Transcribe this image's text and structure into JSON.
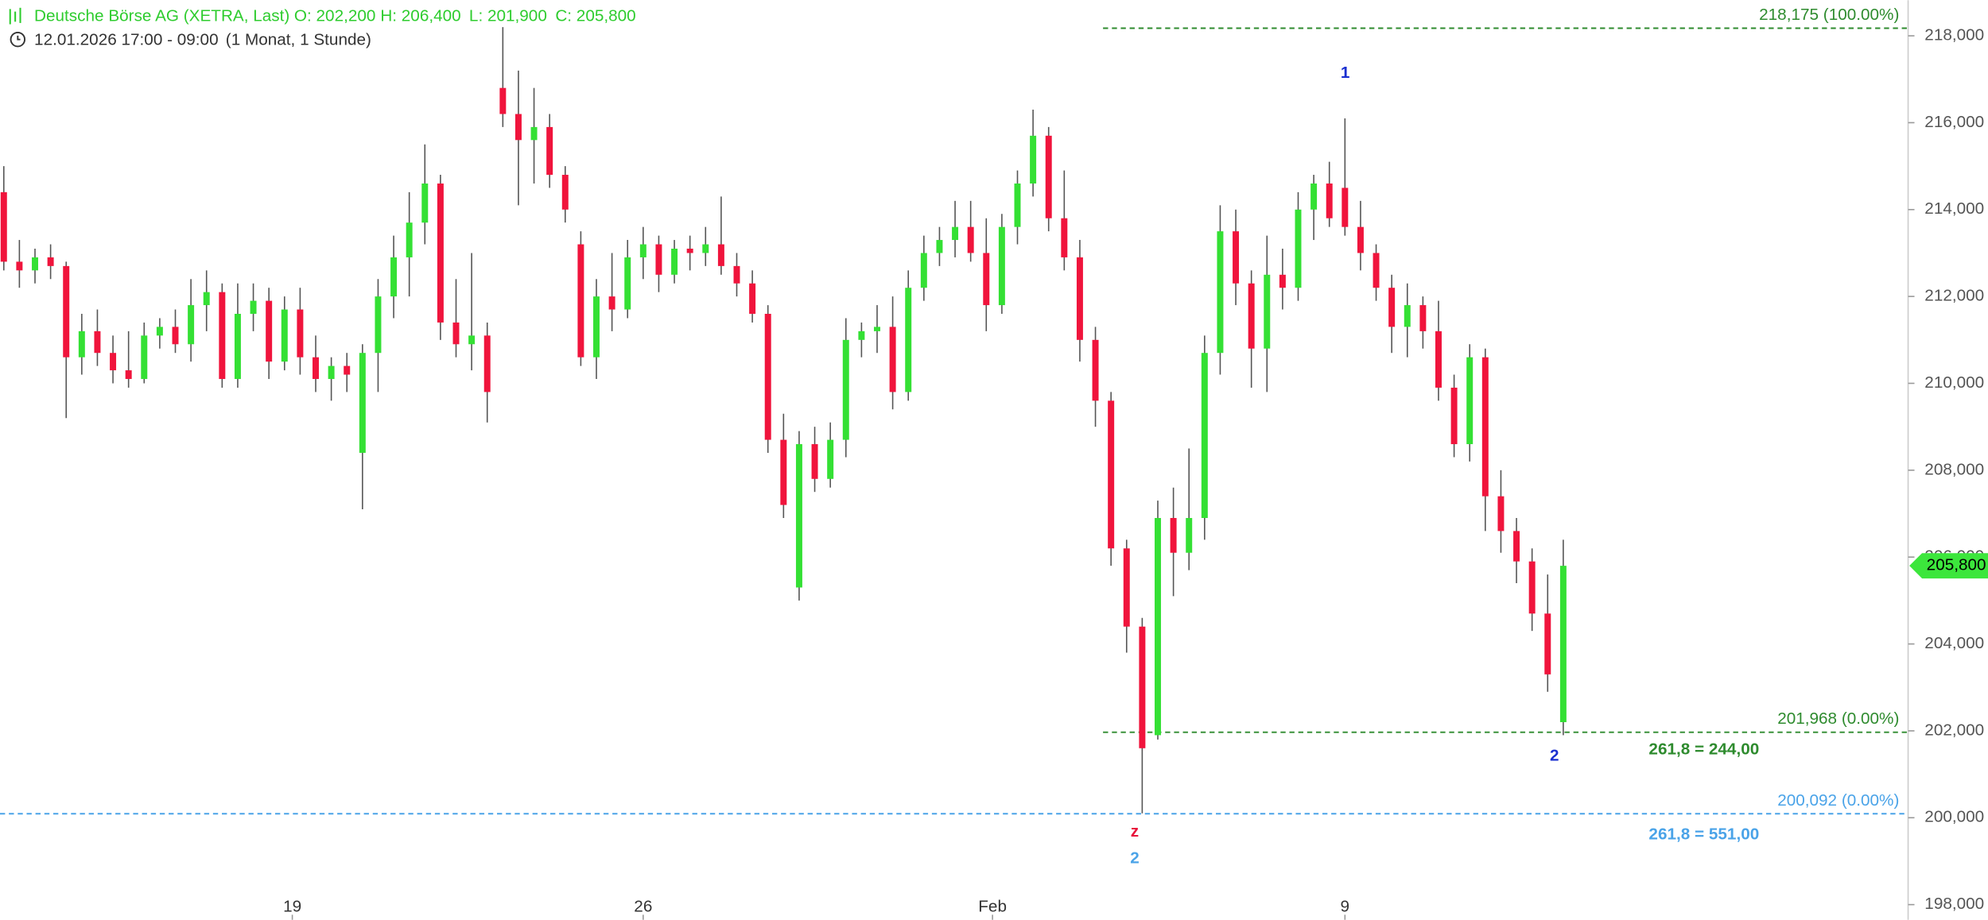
{
  "header": {
    "title": "Deutsche Börse AG (XETRA, Last)",
    "open": "O: 202,200",
    "high": "H: 206,400",
    "low": "L: 201,900",
    "close": "C: 205,800",
    "period": "12.01.2026 17:00 - 09:00",
    "interval": "(1 Monat, 1 Stunde)"
  },
  "chart_data": {
    "type": "candlestick",
    "up_color": "#34e034",
    "down_color": "#f0143c",
    "candles": {
      "open": [
        214.4,
        212.8,
        212.6,
        212.9,
        212.7,
        210.6,
        211.2,
        210.7,
        210.3,
        210.1,
        211.1,
        211.3,
        210.9,
        211.8,
        212.1,
        210.1,
        211.6,
        211.9,
        210.5,
        211.7,
        210.6,
        210.1,
        210.4,
        208.4,
        210.7,
        212.0,
        212.9,
        213.7,
        214.6,
        211.4,
        210.9,
        211.1,
        216.8,
        216.2,
        215.6,
        215.9,
        214.8,
        213.2,
        210.6,
        212.0,
        211.7,
        212.9,
        213.2,
        212.5,
        213.1,
        213.0,
        213.2,
        212.7,
        212.3,
        211.6,
        208.7,
        205.3,
        208.6,
        207.8,
        208.7,
        211.0,
        211.2,
        211.3,
        209.8,
        212.2,
        213.0,
        213.3,
        213.6,
        213.0,
        211.8,
        213.6,
        214.6,
        215.7,
        213.8,
        212.9,
        211.0,
        209.6,
        206.2,
        204.4,
        201.9,
        206.9,
        206.1,
        206.9,
        210.7,
        213.5,
        212.3,
        210.8,
        212.5,
        212.2,
        214.0,
        214.6,
        214.5,
        213.6,
        213.0,
        212.2,
        211.3,
        211.8,
        211.2,
        209.9,
        208.6,
        210.6,
        207.4,
        206.6,
        205.9,
        204.7,
        202.2
      ],
      "high": [
        215.0,
        213.3,
        213.1,
        213.2,
        212.8,
        211.6,
        211.7,
        211.1,
        211.2,
        211.4,
        211.5,
        211.7,
        212.4,
        212.6,
        212.3,
        212.3,
        212.3,
        212.2,
        212.0,
        212.2,
        211.1,
        210.6,
        210.7,
        210.9,
        212.4,
        213.4,
        214.4,
        215.5,
        214.8,
        212.4,
        213.0,
        211.4,
        218.2,
        217.2,
        216.8,
        216.2,
        215.0,
        213.5,
        212.4,
        213.0,
        213.3,
        213.6,
        213.4,
        213.3,
        213.4,
        213.6,
        214.3,
        213.0,
        212.6,
        211.8,
        209.3,
        208.9,
        209.0,
        209.1,
        211.5,
        211.4,
        211.8,
        212.0,
        212.6,
        213.4,
        213.6,
        214.2,
        214.2,
        213.8,
        213.9,
        214.9,
        216.3,
        215.9,
        214.9,
        213.3,
        211.3,
        209.8,
        206.4,
        204.6,
        207.3,
        207.6,
        208.5,
        211.1,
        214.1,
        214.0,
        212.6,
        213.4,
        213.1,
        214.4,
        214.8,
        215.1,
        216.1,
        214.2,
        213.2,
        212.5,
        212.3,
        212.0,
        211.9,
        210.2,
        210.9,
        210.8,
        208.0,
        206.9,
        206.2,
        205.6,
        206.4
      ],
      "low": [
        212.6,
        212.2,
        212.3,
        212.4,
        209.2,
        210.2,
        210.4,
        210.0,
        209.9,
        210.0,
        210.8,
        210.7,
        210.5,
        211.2,
        209.9,
        209.9,
        211.2,
        210.1,
        210.3,
        210.2,
        209.8,
        209.6,
        209.8,
        207.1,
        209.8,
        211.5,
        212.0,
        213.2,
        211.0,
        210.6,
        210.3,
        209.1,
        215.9,
        214.1,
        214.6,
        214.5,
        213.7,
        210.4,
        210.1,
        211.2,
        211.5,
        212.4,
        212.1,
        212.3,
        212.6,
        212.7,
        212.5,
        212.0,
        211.4,
        208.4,
        206.9,
        205.0,
        207.5,
        207.6,
        208.3,
        210.6,
        210.7,
        209.4,
        209.6,
        211.9,
        212.7,
        212.9,
        212.8,
        211.2,
        211.6,
        213.2,
        214.3,
        213.5,
        212.6,
        210.5,
        209.0,
        205.8,
        203.8,
        200.1,
        201.8,
        205.1,
        205.7,
        206.4,
        210.2,
        211.8,
        209.9,
        209.8,
        211.7,
        211.9,
        213.3,
        213.6,
        213.4,
        212.6,
        211.9,
        210.7,
        210.6,
        210.8,
        209.6,
        208.3,
        208.2,
        206.6,
        206.1,
        205.4,
        204.3,
        202.9,
        201.9
      ],
      "close": [
        212.8,
        212.6,
        212.9,
        212.7,
        210.6,
        211.2,
        210.7,
        210.3,
        210.1,
        211.1,
        211.3,
        210.9,
        211.8,
        212.1,
        210.1,
        211.6,
        211.9,
        210.5,
        211.7,
        210.6,
        210.1,
        210.4,
        210.2,
        210.7,
        212.0,
        212.9,
        213.7,
        214.6,
        211.4,
        210.9,
        211.1,
        209.8,
        216.2,
        215.6,
        215.9,
        214.8,
        214.0,
        210.6,
        212.0,
        211.7,
        212.9,
        213.2,
        212.5,
        213.1,
        213.0,
        213.2,
        212.7,
        212.3,
        211.6,
        208.7,
        207.2,
        208.6,
        207.8,
        208.7,
        211.0,
        211.2,
        211.3,
        209.8,
        212.2,
        213.0,
        213.3,
        213.6,
        213.0,
        211.8,
        213.6,
        214.6,
        215.7,
        213.8,
        212.9,
        211.0,
        209.6,
        206.2,
        204.4,
        201.6,
        206.9,
        206.1,
        206.9,
        210.7,
        213.5,
        212.3,
        210.8,
        212.5,
        212.2,
        214.0,
        214.6,
        213.8,
        213.6,
        213.0,
        212.2,
        211.3,
        211.8,
        211.2,
        209.9,
        208.6,
        210.6,
        207.4,
        206.6,
        205.9,
        204.7,
        203.3,
        205.8
      ]
    },
    "last_price": {
      "value": 205.8,
      "label": "205,800"
    },
    "ylim": [
      197.65,
      218.82
    ],
    "yticks": [
      {
        "value": 198,
        "label": "198,000"
      },
      {
        "value": 200,
        "label": "200,000"
      },
      {
        "value": 202,
        "label": "202,000"
      },
      {
        "value": 204,
        "label": "204,000"
      },
      {
        "value": 206,
        "label": "206,000"
      },
      {
        "value": 208,
        "label": "208,000"
      },
      {
        "value": 210,
        "label": "210,000"
      },
      {
        "value": 212,
        "label": "212,000"
      },
      {
        "value": 214,
        "label": "214,000"
      },
      {
        "value": 216,
        "label": "216,000"
      },
      {
        "value": 218,
        "label": "218,000"
      }
    ],
    "xticks": [
      {
        "value": 18.5,
        "label": "19"
      },
      {
        "value": 41,
        "label": "26"
      },
      {
        "value": 63.4,
        "label": "Feb"
      },
      {
        "value": 86,
        "label": "9"
      }
    ],
    "levels": [
      {
        "value": 218.175,
        "label": "218,175 (100.00%)",
        "color": "#2e8b2e"
      },
      {
        "value": 201.968,
        "label": "201,968 (0.00%)",
        "color": "#2e8b2e"
      },
      {
        "value": 200.092,
        "label": "200,092 (0.00%)",
        "color": "#4aa3e8"
      }
    ],
    "annotations": [
      {
        "text": "1",
        "color": "#1a2fd0"
      },
      {
        "text": "2",
        "color": "#1a2fd0"
      },
      {
        "text": "z",
        "color": "#e8143c"
      },
      {
        "text": "2",
        "color": "#4aa3e8"
      },
      {
        "text": "261,8 = 244,00",
        "color": "#2e8b2e"
      },
      {
        "text": "261,8 = 551,00",
        "color": "#4aa3e8"
      }
    ]
  }
}
